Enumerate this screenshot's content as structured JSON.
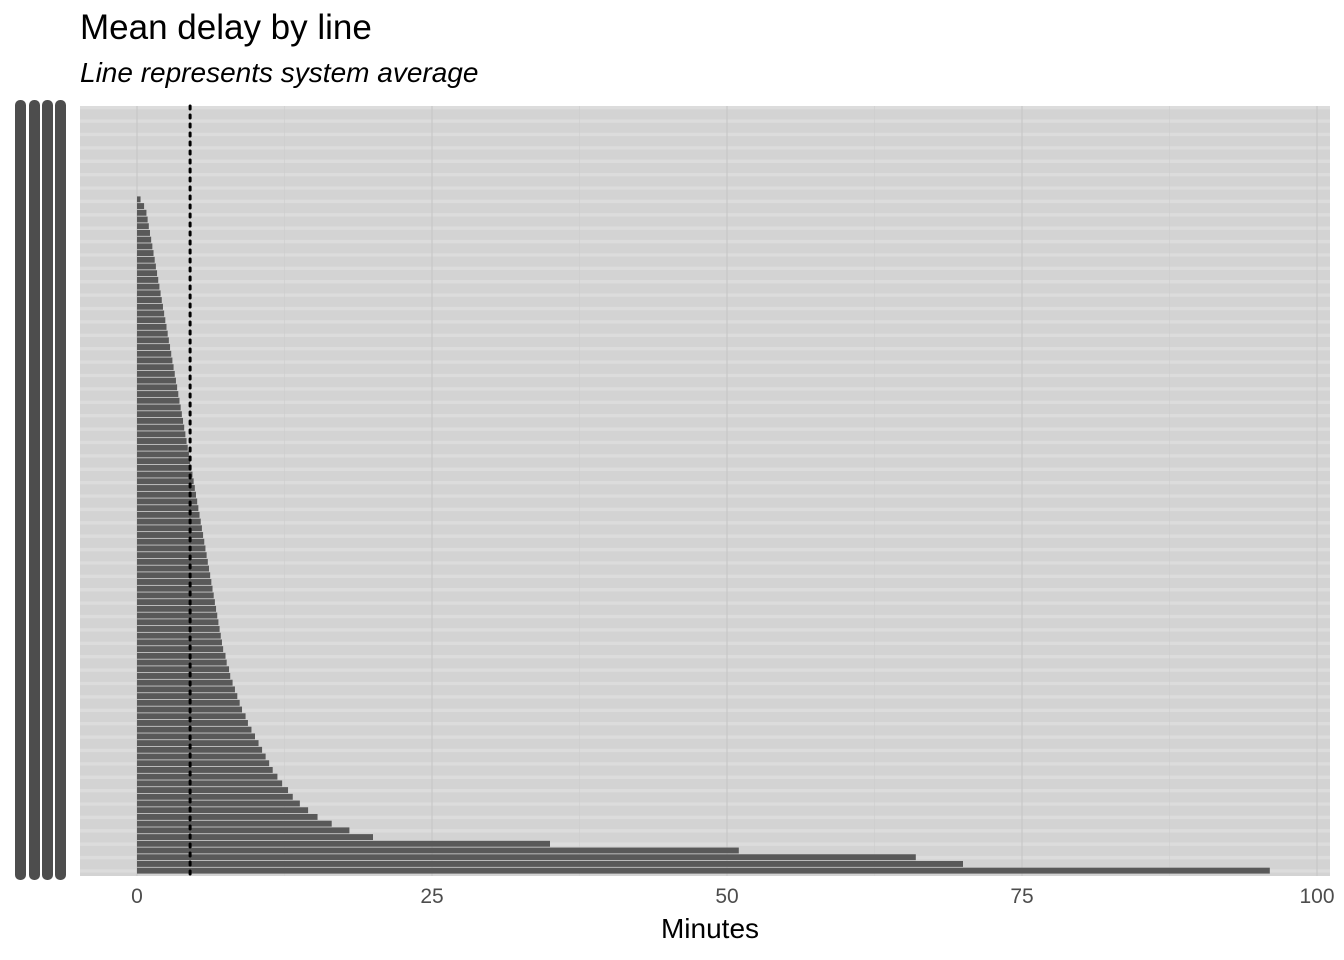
{
  "chart_data": {
    "type": "bar",
    "orientation": "horizontal",
    "title": "Mean delay by line",
    "subtitle": "Line represents system average",
    "xlabel": "Minutes",
    "ylabel": "",
    "xlim": [
      0,
      100
    ],
    "x_ticks": [
      "0",
      "25",
      "50",
      "75",
      "100"
    ],
    "reference_line": {
      "value": 4.5,
      "style": "dotted",
      "color": "#000000"
    },
    "category_labels_legible": false,
    "grid": true,
    "bar_color": "#595959",
    "panel_color": "#d3d3d3",
    "stripe_color": "#dcdcdc",
    "values": [
      96,
      70,
      66,
      51,
      35,
      20,
      18,
      16.5,
      15.3,
      14.5,
      13.8,
      13.2,
      12.8,
      12.3,
      11.9,
      11.5,
      11.2,
      10.9,
      10.6,
      10.3,
      10.0,
      9.7,
      9.4,
      9.2,
      8.9,
      8.7,
      8.5,
      8.3,
      8.1,
      7.9,
      7.8,
      7.6,
      7.5,
      7.3,
      7.2,
      7.1,
      7.0,
      6.9,
      6.8,
      6.7,
      6.6,
      6.5,
      6.4,
      6.3,
      6.2,
      6.1,
      6.0,
      5.9,
      5.8,
      5.7,
      5.6,
      5.5,
      5.4,
      5.3,
      5.2,
      5.1,
      5.0,
      4.9,
      4.8,
      4.7,
      4.6,
      4.5,
      4.4,
      4.3,
      4.2,
      4.1,
      4.0,
      3.9,
      3.8,
      3.7,
      3.6,
      3.5,
      3.4,
      3.3,
      3.2,
      3.1,
      3.0,
      2.9,
      2.8,
      2.7,
      2.6,
      2.5,
      2.4,
      2.3,
      2.2,
      2.1,
      2.0,
      1.9,
      1.8,
      1.7,
      1.6,
      1.5,
      1.4,
      1.3,
      1.2,
      1.1,
      1.0,
      0.9,
      0.8,
      0.6,
      0.3
    ]
  }
}
